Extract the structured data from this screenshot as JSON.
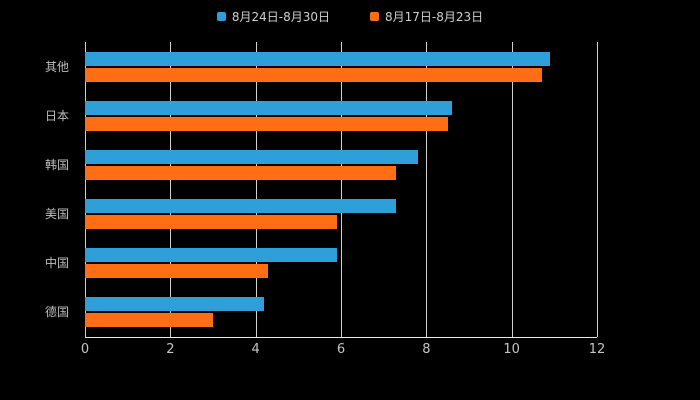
{
  "legend": {
    "series1": "8月24日-8月30日",
    "series2": "8月17日-8月23日"
  },
  "colors": {
    "series1": "#2E9FD8",
    "series2": "#FF6E14",
    "background": "#000000",
    "grid": "#E8E8E8",
    "axis_text": "#C4C4C4",
    "category_text": "#BDBDBD"
  },
  "chart_data": {
    "type": "bar",
    "orientation": "horizontal",
    "title": "",
    "categories": [
      "其他",
      "日本",
      "韩国",
      "美国",
      "中国",
      "德国"
    ],
    "series": [
      {
        "name": "8月24日-8月30日",
        "color": "#2E9FD8",
        "values": [
          10.9,
          8.6,
          7.8,
          7.3,
          5.9,
          4.2
        ]
      },
      {
        "name": "8月17日-8月23日",
        "color": "#FF6E14",
        "values": [
          10.7,
          8.5,
          7.3,
          5.9,
          4.3,
          3.0
        ]
      }
    ],
    "xlim": [
      0,
      12
    ],
    "xticks": [
      0,
      2,
      4,
      6,
      8,
      10,
      12
    ],
    "grid": true,
    "legend_position": "top"
  }
}
